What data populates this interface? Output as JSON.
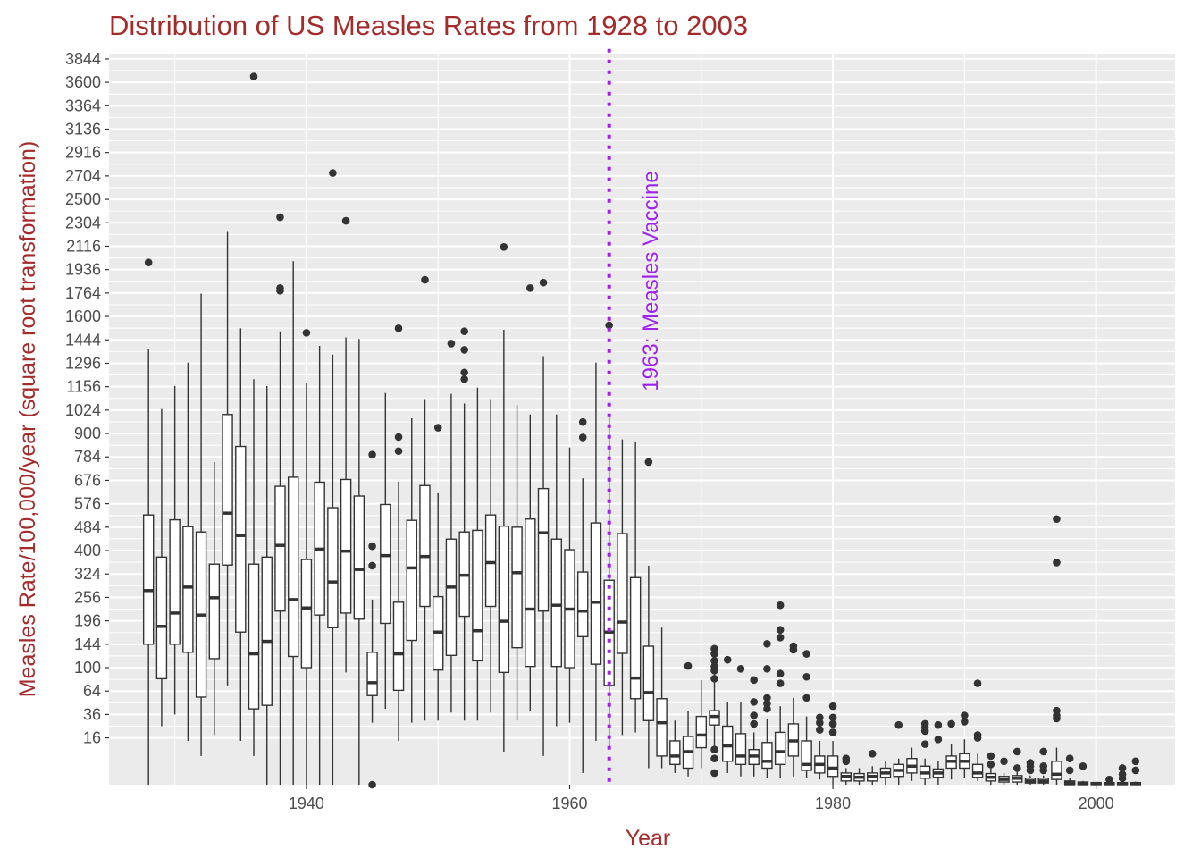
{
  "chart_data": {
    "type": "boxplot",
    "title": "Distribution of US Measles Rates from 1928 to 2003",
    "xlabel": "Year",
    "ylabel": "Measles Rate/100,000/year (square root transformation)",
    "y_scale": "sqrt",
    "x_ticks": [
      1940,
      1960,
      1980,
      2000
    ],
    "y_ticks": [
      16,
      36,
      64,
      100,
      144,
      196,
      256,
      324,
      400,
      484,
      576,
      676,
      784,
      900,
      1024,
      1156,
      1296,
      1444,
      1600,
      1764,
      1936,
      2116,
      2304,
      2500,
      2704,
      2916,
      3136,
      3364,
      3600,
      3844
    ],
    "xlim": [
      1925,
      2006
    ],
    "ylim": [
      0,
      3900
    ],
    "grid": true,
    "colors": {
      "title": "#a52a2a",
      "axis_title": "#a52a2a",
      "panel": "#ebebeb",
      "grid": "#ffffff",
      "vaccine_line": "#a020f0",
      "box_fill": "#ffffff",
      "box_stroke": "#333333"
    },
    "annotation": {
      "text": "1963: Measles Vaccine",
      "x": 1963
    },
    "boxes": [
      {
        "year": 1928,
        "lower": 0,
        "q1": 144,
        "median": 275,
        "q3": 531,
        "upper": 1385,
        "outliers": [
          1990
        ]
      },
      {
        "year": 1929,
        "lower": 25,
        "q1": 82,
        "median": 183,
        "q3": 378,
        "upper": 1030,
        "outliers": []
      },
      {
        "year": 1930,
        "lower": 36,
        "q1": 144,
        "median": 215,
        "q3": 512,
        "upper": 1160,
        "outliers": []
      },
      {
        "year": 1931,
        "lower": 14,
        "q1": 128,
        "median": 285,
        "q3": 486,
        "upper": 1300,
        "outliers": []
      },
      {
        "year": 1932,
        "lower": 6,
        "q1": 56,
        "median": 210,
        "q3": 466,
        "upper": 1760,
        "outliers": []
      },
      {
        "year": 1933,
        "lower": 18,
        "q1": 116,
        "median": 255,
        "q3": 355,
        "upper": 760,
        "outliers": []
      },
      {
        "year": 1934,
        "lower": 72,
        "q1": 352,
        "median": 538,
        "q3": 1000,
        "upper": 2230,
        "outliers": []
      },
      {
        "year": 1935,
        "lower": 14,
        "q1": 170,
        "median": 453,
        "q3": 835,
        "upper": 1520,
        "outliers": []
      },
      {
        "year": 1936,
        "lower": 6,
        "q1": 42,
        "median": 125,
        "q3": 355,
        "upper": 1200,
        "outliers": [
          3660
        ]
      },
      {
        "year": 1937,
        "lower": 0,
        "q1": 46,
        "median": 150,
        "q3": 378,
        "upper": 1160,
        "outliers": []
      },
      {
        "year": 1938,
        "lower": 0,
        "q1": 220,
        "median": 418,
        "q3": 650,
        "upper": 1500,
        "outliers": [
          2350,
          1800,
          1780
        ]
      },
      {
        "year": 1939,
        "lower": 0,
        "q1": 120,
        "median": 250,
        "q3": 690,
        "upper": 2000,
        "outliers": []
      },
      {
        "year": 1940,
        "lower": 0,
        "q1": 100,
        "median": 228,
        "q3": 370,
        "upper": 1180,
        "outliers": [
          1490
        ]
      },
      {
        "year": 1941,
        "lower": 0,
        "q1": 210,
        "median": 405,
        "q3": 668,
        "upper": 1405,
        "outliers": []
      },
      {
        "year": 1942,
        "lower": 0,
        "q1": 180,
        "median": 300,
        "q3": 560,
        "upper": 1350,
        "outliers": [
          2730
        ]
      },
      {
        "year": 1943,
        "lower": 92,
        "q1": 215,
        "median": 398,
        "q3": 680,
        "upper": 1460,
        "outliers": [
          2320
        ]
      },
      {
        "year": 1944,
        "lower": 0,
        "q1": 200,
        "median": 338,
        "q3": 608,
        "upper": 1450,
        "outliers": []
      },
      {
        "year": 1945,
        "lower": 28,
        "q1": 58,
        "median": 76,
        "q3": 128,
        "upper": 250,
        "outliers": [
          795,
          415,
          350,
          0
        ]
      },
      {
        "year": 1946,
        "lower": 42,
        "q1": 190,
        "median": 383,
        "q3": 573,
        "upper": 1120,
        "outliers": []
      },
      {
        "year": 1947,
        "lower": 14,
        "q1": 65,
        "median": 125,
        "q3": 243,
        "upper": 670,
        "outliers": [
          1520,
          882,
          812
        ]
      },
      {
        "year": 1948,
        "lower": 28,
        "q1": 152,
        "median": 343,
        "q3": 510,
        "upper": 980,
        "outliers": []
      },
      {
        "year": 1949,
        "lower": 30,
        "q1": 232,
        "median": 380,
        "q3": 653,
        "upper": 1085,
        "outliers": [
          1860
        ]
      },
      {
        "year": 1950,
        "lower": 30,
        "q1": 96,
        "median": 170,
        "q3": 258,
        "upper": 620,
        "outliers": [
          930
        ]
      },
      {
        "year": 1951,
        "lower": 38,
        "q1": 122,
        "median": 285,
        "q3": 440,
        "upper": 1115,
        "outliers": [
          1420
        ]
      },
      {
        "year": 1952,
        "lower": 30,
        "q1": 207,
        "median": 320,
        "q3": 466,
        "upper": 1060,
        "outliers": [
          1500,
          1380,
          1240,
          1200
        ]
      },
      {
        "year": 1953,
        "lower": 30,
        "q1": 112,
        "median": 173,
        "q3": 472,
        "upper": 1150,
        "outliers": []
      },
      {
        "year": 1954,
        "lower": 38,
        "q1": 232,
        "median": 360,
        "q3": 531,
        "upper": 1085,
        "outliers": []
      },
      {
        "year": 1955,
        "lower": 8,
        "q1": 92,
        "median": 195,
        "q3": 488,
        "upper": 1510,
        "outliers": [
          2110
        ]
      },
      {
        "year": 1956,
        "lower": 30,
        "q1": 137,
        "median": 328,
        "q3": 484,
        "upper": 1050,
        "outliers": []
      },
      {
        "year": 1957,
        "lower": 40,
        "q1": 102,
        "median": 225,
        "q3": 515,
        "upper": 1000,
        "outliers": [
          1800
        ]
      },
      {
        "year": 1958,
        "lower": 6,
        "q1": 220,
        "median": 463,
        "q3": 640,
        "upper": 1340,
        "outliers": [
          1840
        ]
      },
      {
        "year": 1959,
        "lower": 25,
        "q1": 102,
        "median": 235,
        "q3": 440,
        "upper": 1000,
        "outliers": []
      },
      {
        "year": 1960,
        "lower": 28,
        "q1": 100,
        "median": 225,
        "q3": 403,
        "upper": 830,
        "outliers": []
      },
      {
        "year": 1961,
        "lower": 1,
        "q1": 160,
        "median": 220,
        "q3": 330,
        "upper": 685,
        "outliers": [
          960,
          880
        ]
      },
      {
        "year": 1962,
        "lower": 14,
        "q1": 106,
        "median": 243,
        "q3": 500,
        "upper": 1300,
        "outliers": []
      },
      {
        "year": 1963,
        "lower": 10,
        "q1": 72,
        "median": 170,
        "q3": 305,
        "upper": 1000,
        "outliers": [
          1540
        ]
      },
      {
        "year": 1964,
        "lower": 18,
        "q1": 126,
        "median": 193,
        "q3": 460,
        "upper": 870,
        "outliers": []
      },
      {
        "year": 1965,
        "lower": 20,
        "q1": 54,
        "median": 83,
        "q3": 313,
        "upper": 860,
        "outliers": []
      },
      {
        "year": 1966,
        "lower": 2,
        "q1": 30,
        "median": 62,
        "q3": 140,
        "upper": 350,
        "outliers": [
          760
        ]
      },
      {
        "year": 1967,
        "lower": 2,
        "q1": 6,
        "median": 28,
        "q3": 54,
        "upper": 180,
        "outliers": []
      },
      {
        "year": 1968,
        "lower": 1,
        "q1": 3,
        "median": 6,
        "q3": 14,
        "upper": 30,
        "outliers": []
      },
      {
        "year": 1969,
        "lower": 0.5,
        "q1": 2,
        "median": 8,
        "q3": 17,
        "upper": 40,
        "outliers": [
          103
        ]
      },
      {
        "year": 1970,
        "lower": 2,
        "q1": 10,
        "median": 18,
        "q3": 34,
        "upper": 80,
        "outliers": []
      },
      {
        "year": 1971,
        "lower": 10,
        "q1": 26,
        "median": 34,
        "q3": 40,
        "upper": 90,
        "outliers": [
          135,
          125,
          112,
          102,
          95,
          82,
          9,
          5,
          1
        ]
      },
      {
        "year": 1972,
        "lower": 1,
        "q1": 4,
        "median": 11,
        "q3": 25,
        "upper": 50,
        "outliers": [
          114
        ]
      },
      {
        "year": 1973,
        "lower": 0.5,
        "q1": 3,
        "median": 6,
        "q3": 19,
        "upper": 50,
        "outliers": [
          98
        ]
      },
      {
        "year": 1974,
        "lower": 0.5,
        "q1": 3,
        "median": 6,
        "q3": 9,
        "upper": 20,
        "outliers": [
          80,
          50,
          35,
          27
        ]
      },
      {
        "year": 1975,
        "lower": 0.3,
        "q1": 2,
        "median": 4,
        "q3": 13,
        "upper": 32,
        "outliers": [
          145,
          98,
          55,
          48,
          42
        ]
      },
      {
        "year": 1976,
        "lower": 0.3,
        "q1": 3,
        "median": 8,
        "q3": 20,
        "upper": 45,
        "outliers": [
          235,
          175,
          158,
          90,
          75
        ]
      },
      {
        "year": 1977,
        "lower": 0.5,
        "q1": 6,
        "median": 14,
        "q3": 27,
        "upper": 55,
        "outliers": [
          140,
          133
        ]
      },
      {
        "year": 1978,
        "lower": 0.3,
        "q1": 1.5,
        "median": 3,
        "q3": 14,
        "upper": 34,
        "outliers": [
          125,
          85,
          55
        ]
      },
      {
        "year": 1979,
        "lower": 0.2,
        "q1": 1,
        "median": 3,
        "q3": 6,
        "upper": 14,
        "outliers": [
          33,
          28,
          22
        ]
      },
      {
        "year": 1980,
        "lower": 0,
        "q1": 0.5,
        "median": 2,
        "q3": 6,
        "upper": 14,
        "outliers": [
          45,
          33,
          27,
          20
        ]
      },
      {
        "year": 1981,
        "lower": 0,
        "q1": 0.1,
        "median": 0.5,
        "q3": 1,
        "upper": 2,
        "outliers": [
          5,
          4
        ]
      },
      {
        "year": 1982,
        "lower": 0,
        "q1": 0.1,
        "median": 0.4,
        "q3": 0.9,
        "upper": 2,
        "outliers": []
      },
      {
        "year": 1983,
        "lower": 0,
        "q1": 0.1,
        "median": 0.5,
        "q3": 1,
        "upper": 2.5,
        "outliers": [
          7
        ]
      },
      {
        "year": 1984,
        "lower": 0,
        "q1": 0.4,
        "median": 1,
        "q3": 2,
        "upper": 4,
        "outliers": []
      },
      {
        "year": 1985,
        "lower": 0,
        "q1": 0.5,
        "median": 1.5,
        "q3": 3,
        "upper": 5,
        "outliers": [
          26
        ]
      },
      {
        "year": 1986,
        "lower": 0.1,
        "q1": 1,
        "median": 2.5,
        "q3": 5,
        "upper": 10,
        "outliers": []
      },
      {
        "year": 1987,
        "lower": 0,
        "q1": 0.3,
        "median": 1,
        "q3": 2.5,
        "upper": 5,
        "outliers": [
          27,
          24,
          21,
          12
        ]
      },
      {
        "year": 1988,
        "lower": 0,
        "q1": 0.4,
        "median": 1,
        "q3": 1.8,
        "upper": 4,
        "outliers": [
          26,
          15
        ]
      },
      {
        "year": 1989,
        "lower": 0.2,
        "q1": 2,
        "median": 4,
        "q3": 6,
        "upper": 12,
        "outliers": [
          27
        ]
      },
      {
        "year": 1990,
        "lower": 0.3,
        "q1": 2,
        "median": 4,
        "q3": 7,
        "upper": 15,
        "outliers": [
          35,
          29
        ]
      },
      {
        "year": 1991,
        "lower": 0.1,
        "q1": 0.4,
        "median": 1,
        "q3": 3,
        "upper": 7,
        "outliers": [
          75,
          18,
          16
        ]
      },
      {
        "year": 1992,
        "lower": 0,
        "q1": 0.1,
        "median": 0.4,
        "q3": 0.9,
        "upper": 2,
        "outliers": [
          6,
          3
        ]
      },
      {
        "year": 1993,
        "lower": 0,
        "q1": 0.05,
        "median": 0.2,
        "q3": 0.5,
        "upper": 1,
        "outliers": [
          4
        ]
      },
      {
        "year": 1994,
        "lower": 0,
        "q1": 0.05,
        "median": 0.3,
        "q3": 0.6,
        "upper": 1.2,
        "outliers": [
          8,
          2
        ]
      },
      {
        "year": 1995,
        "lower": 0,
        "q1": 0.02,
        "median": 0.1,
        "q3": 0.3,
        "upper": 0.6,
        "outliers": [
          3.5,
          2.5,
          1.5
        ]
      },
      {
        "year": 1996,
        "lower": 0,
        "q1": 0.02,
        "median": 0.1,
        "q3": 0.3,
        "upper": 0.6,
        "outliers": [
          8,
          2.5,
          1.5
        ]
      },
      {
        "year": 1997,
        "lower": 0,
        "q1": 0.2,
        "median": 0.8,
        "q3": 4,
        "upper": 10,
        "outliers": [
          515,
          360,
          40,
          35,
          32
        ]
      },
      {
        "year": 1998,
        "lower": 0,
        "q1": 0,
        "median": 0.02,
        "q3": 0.1,
        "upper": 0.3,
        "outliers": [
          5,
          1.5
        ]
      },
      {
        "year": 1999,
        "lower": 0,
        "q1": 0,
        "median": 0.02,
        "q3": 0.05,
        "upper": 0.1,
        "outliers": [
          2.5
        ]
      },
      {
        "year": 2000,
        "lower": 0,
        "q1": 0,
        "median": 0.01,
        "q3": 0.03,
        "upper": 0.07,
        "outliers": []
      },
      {
        "year": 2001,
        "lower": 0,
        "q1": 0,
        "median": 0.01,
        "q3": 0.03,
        "upper": 0.07,
        "outliers": [
          0.2
        ]
      },
      {
        "year": 2002,
        "lower": 0,
        "q1": 0,
        "median": 0.01,
        "q3": 0.03,
        "upper": 0.07,
        "outliers": [
          2,
          0.8,
          0.3
        ]
      },
      {
        "year": 2003,
        "lower": 0,
        "q1": 0,
        "median": 0.01,
        "q3": 0.03,
        "upper": 0.07,
        "outliers": [
          4,
          1.5
        ]
      }
    ]
  }
}
